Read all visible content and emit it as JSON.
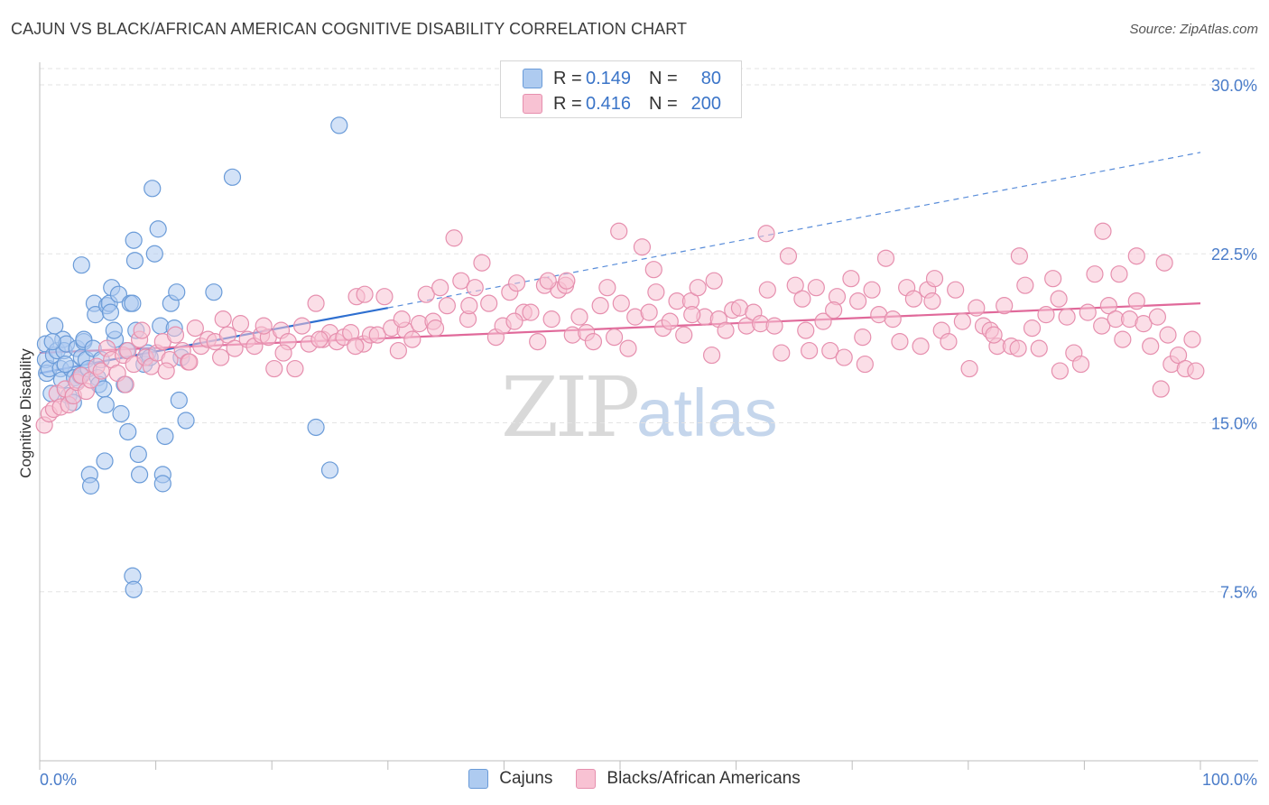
{
  "title": "CAJUN VS BLACK/AFRICAN AMERICAN COGNITIVE DISABILITY CORRELATION CHART",
  "source": "Source: ZipAtlas.com",
  "watermark": {
    "zip": "ZIP",
    "atlas": "atlas"
  },
  "legend": {
    "rows": [
      {
        "r_label": "R =",
        "r_value": "0.149",
        "n_label": "N =",
        "n_value": "80",
        "color": "#aecbf0",
        "border": "#6a9bd8"
      },
      {
        "r_label": "R =",
        "r_value": "0.416",
        "n_label": "N =",
        "n_value": "200",
        "color": "#f8c2d3",
        "border": "#e68fae"
      }
    ]
  },
  "bottom_legend": [
    {
      "label": "Cajuns",
      "color": "#aecbf0",
      "border": "#6a9bd8"
    },
    {
      "label": "Blacks/African Americans",
      "color": "#f8c2d3",
      "border": "#e68fae"
    }
  ],
  "chart_data": {
    "type": "scatter",
    "ylabel": "Cognitive Disability",
    "xlim": [
      0,
      100
    ],
    "ylim": [
      0,
      31
    ],
    "x_tick_labels": {
      "left": "0.0%",
      "right": "100.0%"
    },
    "y_ticks": [
      {
        "value": 7.5,
        "label": "7.5%"
      },
      {
        "value": 15.0,
        "label": "15.0%"
      },
      {
        "value": 22.5,
        "label": "22.5%"
      },
      {
        "value": 30.0,
        "label": "30.0%"
      }
    ],
    "grid": true,
    "series": [
      {
        "name": "Cajuns",
        "color": "#aecbf0",
        "stroke": "#6a9bd8",
        "trend": {
          "x0": 0,
          "y0": 17.2,
          "x1": 30,
          "y1": 20.1,
          "dash_x1": 100,
          "dash_y1": 27.0,
          "color": "#2e6fd0"
        },
        "points": [
          [
            0.5,
            18.5
          ],
          [
            0.5,
            17.8
          ],
          [
            0.6,
            17.2
          ],
          [
            0.8,
            17.4
          ],
          [
            1.0,
            16.3
          ],
          [
            1.2,
            18.0
          ],
          [
            1.3,
            19.3
          ],
          [
            1.5,
            18.2
          ],
          [
            1.8,
            17.4
          ],
          [
            1.9,
            16.9
          ],
          [
            2.0,
            18.7
          ],
          [
            2.1,
            18.2
          ],
          [
            2.3,
            18.5
          ],
          [
            2.5,
            16.2
          ],
          [
            2.7,
            17.4
          ],
          [
            2.9,
            15.9
          ],
          [
            3.0,
            17.0
          ],
          [
            3.2,
            18.3
          ],
          [
            3.3,
            16.9
          ],
          [
            3.5,
            17.1
          ],
          [
            3.6,
            17.9
          ],
          [
            3.8,
            18.6
          ],
          [
            3.6,
            22.0
          ],
          [
            3.8,
            18.7
          ],
          [
            4.0,
            17.8
          ],
          [
            4.2,
            17.4
          ],
          [
            4.3,
            12.7
          ],
          [
            4.4,
            12.2
          ],
          [
            4.6,
            18.3
          ],
          [
            4.7,
            20.3
          ],
          [
            4.8,
            19.8
          ],
          [
            5.0,
            17.0
          ],
          [
            5.1,
            16.7
          ],
          [
            5.3,
            17.8
          ],
          [
            5.5,
            16.5
          ],
          [
            5.6,
            13.3
          ],
          [
            5.7,
            15.8
          ],
          [
            5.8,
            20.2
          ],
          [
            6.0,
            20.3
          ],
          [
            6.1,
            19.9
          ],
          [
            6.2,
            21.0
          ],
          [
            6.5,
            18.7
          ],
          [
            6.8,
            20.7
          ],
          [
            7.0,
            15.4
          ],
          [
            7.3,
            16.7
          ],
          [
            7.5,
            18.2
          ],
          [
            7.6,
            14.6
          ],
          [
            7.8,
            20.3
          ],
          [
            8.0,
            20.3
          ],
          [
            8.1,
            23.1
          ],
          [
            8.2,
            22.2
          ],
          [
            8.3,
            19.1
          ],
          [
            8.5,
            13.6
          ],
          [
            8.6,
            12.7
          ],
          [
            8.0,
            8.2
          ],
          [
            8.1,
            7.6
          ],
          [
            9.0,
            17.6
          ],
          [
            9.3,
            18.1
          ],
          [
            9.7,
            25.4
          ],
          [
            9.9,
            22.5
          ],
          [
            10.2,
            23.6
          ],
          [
            10.4,
            19.3
          ],
          [
            10.6,
            12.7
          ],
          [
            10.6,
            12.3
          ],
          [
            10.8,
            14.4
          ],
          [
            11.3,
            20.3
          ],
          [
            11.6,
            19.2
          ],
          [
            11.8,
            20.8
          ],
          [
            12.0,
            16.0
          ],
          [
            12.2,
            17.9
          ],
          [
            12.6,
            15.1
          ],
          [
            15.0,
            20.8
          ],
          [
            16.6,
            25.9
          ],
          [
            23.8,
            14.8
          ],
          [
            25.0,
            12.9
          ],
          [
            25.8,
            28.2
          ],
          [
            1.1,
            18.6
          ],
          [
            2.2,
            17.6
          ],
          [
            6.4,
            19.1
          ],
          [
            9.5,
            17.9
          ]
        ]
      },
      {
        "name": "Blacks/African Americans",
        "color": "#f8c2d3",
        "stroke": "#e68fae",
        "trend": {
          "x0": 0,
          "y0": 18.1,
          "x1": 100,
          "y1": 20.3,
          "color": "#e0699a"
        },
        "points": [
          [
            0.4,
            14.9
          ],
          [
            0.8,
            15.4
          ],
          [
            1.2,
            15.6
          ],
          [
            1.5,
            16.3
          ],
          [
            1.8,
            15.7
          ],
          [
            2.2,
            16.5
          ],
          [
            2.5,
            15.8
          ],
          [
            2.9,
            16.2
          ],
          [
            3.2,
            16.8
          ],
          [
            3.6,
            17.1
          ],
          [
            4.0,
            16.4
          ],
          [
            4.4,
            16.9
          ],
          [
            4.9,
            17.5
          ],
          [
            5.3,
            17.3
          ],
          [
            5.8,
            18.3
          ],
          [
            6.2,
            17.8
          ],
          [
            6.7,
            17.2
          ],
          [
            7.2,
            18.0
          ],
          [
            7.6,
            18.2
          ],
          [
            8.1,
            17.6
          ],
          [
            8.6,
            18.7
          ],
          [
            9.1,
            17.9
          ],
          [
            9.6,
            17.5
          ],
          [
            10.1,
            18.1
          ],
          [
            10.6,
            18.6
          ],
          [
            11.2,
            17.8
          ],
          [
            11.7,
            18.9
          ],
          [
            12.3,
            18.2
          ],
          [
            12.8,
            17.7
          ],
          [
            13.4,
            19.2
          ],
          [
            13.9,
            18.4
          ],
          [
            14.5,
            18.7
          ],
          [
            15.1,
            18.6
          ],
          [
            15.6,
            17.9
          ],
          [
            16.2,
            18.9
          ],
          [
            16.8,
            18.3
          ],
          [
            17.3,
            19.4
          ],
          [
            17.9,
            18.7
          ],
          [
            18.5,
            18.4
          ],
          [
            19.1,
            18.9
          ],
          [
            19.7,
            18.8
          ],
          [
            20.2,
            17.4
          ],
          [
            20.8,
            19.1
          ],
          [
            21.4,
            18.6
          ],
          [
            22.0,
            17.4
          ],
          [
            22.6,
            19.3
          ],
          [
            23.2,
            18.5
          ],
          [
            23.8,
            20.3
          ],
          [
            24.4,
            18.7
          ],
          [
            25.0,
            19.0
          ],
          [
            25.6,
            18.6
          ],
          [
            26.2,
            18.8
          ],
          [
            26.8,
            19.0
          ],
          [
            27.3,
            20.6
          ],
          [
            27.9,
            18.5
          ],
          [
            28.5,
            18.9
          ],
          [
            29.1,
            18.9
          ],
          [
            29.7,
            20.6
          ],
          [
            30.3,
            19.2
          ],
          [
            30.9,
            18.2
          ],
          [
            31.5,
            19.1
          ],
          [
            32.1,
            18.7
          ],
          [
            32.7,
            19.4
          ],
          [
            33.3,
            20.7
          ],
          [
            33.9,
            19.5
          ],
          [
            34.5,
            21.0
          ],
          [
            35.1,
            20.2
          ],
          [
            35.7,
            23.2
          ],
          [
            36.3,
            21.3
          ],
          [
            36.9,
            19.6
          ],
          [
            37.5,
            21.0
          ],
          [
            38.1,
            22.1
          ],
          [
            38.7,
            20.3
          ],
          [
            39.3,
            18.8
          ],
          [
            39.9,
            19.3
          ],
          [
            40.5,
            20.8
          ],
          [
            41.1,
            21.2
          ],
          [
            41.7,
            19.9
          ],
          [
            42.3,
            19.9
          ],
          [
            42.9,
            18.6
          ],
          [
            43.5,
            21.1
          ],
          [
            44.1,
            19.6
          ],
          [
            44.7,
            20.9
          ],
          [
            45.3,
            21.1
          ],
          [
            45.9,
            18.9
          ],
          [
            46.5,
            19.7
          ],
          [
            47.1,
            19.0
          ],
          [
            47.7,
            18.6
          ],
          [
            48.3,
            20.2
          ],
          [
            48.9,
            21.0
          ],
          [
            49.5,
            18.8
          ],
          [
            50.1,
            20.3
          ],
          [
            50.7,
            18.3
          ],
          [
            51.3,
            19.7
          ],
          [
            51.9,
            22.8
          ],
          [
            52.5,
            19.9
          ],
          [
            53.1,
            20.8
          ],
          [
            53.7,
            19.2
          ],
          [
            54.3,
            19.5
          ],
          [
            54.9,
            20.4
          ],
          [
            55.5,
            18.9
          ],
          [
            56.1,
            20.4
          ],
          [
            56.7,
            21.0
          ],
          [
            57.3,
            19.7
          ],
          [
            57.9,
            18.0
          ],
          [
            58.5,
            19.6
          ],
          [
            59.1,
            19.1
          ],
          [
            59.7,
            20.0
          ],
          [
            60.3,
            20.1
          ],
          [
            60.9,
            19.3
          ],
          [
            61.5,
            19.9
          ],
          [
            62.1,
            19.4
          ],
          [
            62.7,
            20.9
          ],
          [
            63.3,
            19.3
          ],
          [
            63.9,
            18.1
          ],
          [
            64.5,
            22.4
          ],
          [
            65.1,
            21.1
          ],
          [
            65.7,
            20.5
          ],
          [
            66.3,
            18.2
          ],
          [
            66.9,
            21.0
          ],
          [
            67.5,
            19.5
          ],
          [
            68.1,
            18.2
          ],
          [
            68.7,
            20.6
          ],
          [
            69.3,
            17.9
          ],
          [
            69.9,
            21.4
          ],
          [
            70.5,
            20.4
          ],
          [
            71.1,
            17.6
          ],
          [
            71.7,
            20.9
          ],
          [
            72.3,
            19.8
          ],
          [
            72.9,
            22.3
          ],
          [
            73.5,
            19.6
          ],
          [
            74.1,
            18.6
          ],
          [
            74.7,
            21.0
          ],
          [
            75.3,
            20.5
          ],
          [
            75.9,
            18.4
          ],
          [
            76.5,
            20.9
          ],
          [
            77.1,
            21.4
          ],
          [
            77.7,
            19.1
          ],
          [
            78.3,
            18.6
          ],
          [
            78.9,
            20.9
          ],
          [
            79.5,
            19.5
          ],
          [
            80.1,
            17.4
          ],
          [
            80.7,
            20.1
          ],
          [
            81.3,
            19.3
          ],
          [
            81.9,
            19.1
          ],
          [
            82.5,
            18.4
          ],
          [
            83.1,
            20.2
          ],
          [
            83.7,
            18.4
          ],
          [
            84.3,
            18.3
          ],
          [
            84.9,
            21.1
          ],
          [
            85.5,
            19.2
          ],
          [
            86.1,
            18.3
          ],
          [
            86.7,
            19.8
          ],
          [
            87.3,
            21.4
          ],
          [
            87.9,
            17.3
          ],
          [
            88.5,
            19.7
          ],
          [
            89.1,
            18.1
          ],
          [
            89.7,
            17.6
          ],
          [
            90.3,
            19.9
          ],
          [
            90.9,
            21.6
          ],
          [
            91.5,
            19.3
          ],
          [
            92.1,
            20.2
          ],
          [
            92.7,
            19.6
          ],
          [
            93.3,
            18.7
          ],
          [
            93.9,
            19.6
          ],
          [
            94.5,
            20.4
          ],
          [
            95.1,
            19.4
          ],
          [
            95.7,
            18.4
          ],
          [
            96.3,
            19.7
          ],
          [
            96.9,
            22.1
          ],
          [
            97.5,
            17.6
          ],
          [
            98.1,
            18.0
          ],
          [
            98.7,
            17.4
          ],
          [
            99.3,
            18.7
          ],
          [
            99.6,
            17.3
          ],
          [
            49.9,
            23.5
          ],
          [
            28.0,
            20.7
          ],
          [
            45.4,
            21.3
          ],
          [
            58.1,
            21.3
          ],
          [
            62.6,
            23.4
          ],
          [
            70.9,
            18.8
          ],
          [
            84.4,
            22.4
          ],
          [
            91.6,
            23.5
          ],
          [
            94.5,
            22.4
          ],
          [
            97.2,
            18.9
          ],
          [
            96.6,
            16.5
          ],
          [
            93.0,
            21.6
          ],
          [
            87.8,
            20.5
          ],
          [
            82.2,
            18.9
          ],
          [
            76.9,
            20.4
          ],
          [
            68.4,
            20.0
          ],
          [
            66.0,
            19.1
          ],
          [
            56.2,
            19.8
          ],
          [
            52.9,
            21.8
          ],
          [
            43.8,
            21.3
          ],
          [
            40.9,
            19.5
          ],
          [
            37.0,
            20.2
          ],
          [
            34.1,
            19.2
          ],
          [
            31.2,
            19.6
          ],
          [
            27.2,
            18.4
          ],
          [
            24.1,
            18.7
          ],
          [
            21.0,
            18.1
          ],
          [
            19.3,
            19.3
          ],
          [
            15.8,
            19.6
          ],
          [
            12.9,
            17.7
          ],
          [
            10.9,
            17.3
          ],
          [
            8.8,
            19.1
          ],
          [
            7.4,
            16.7
          ]
        ]
      }
    ]
  }
}
